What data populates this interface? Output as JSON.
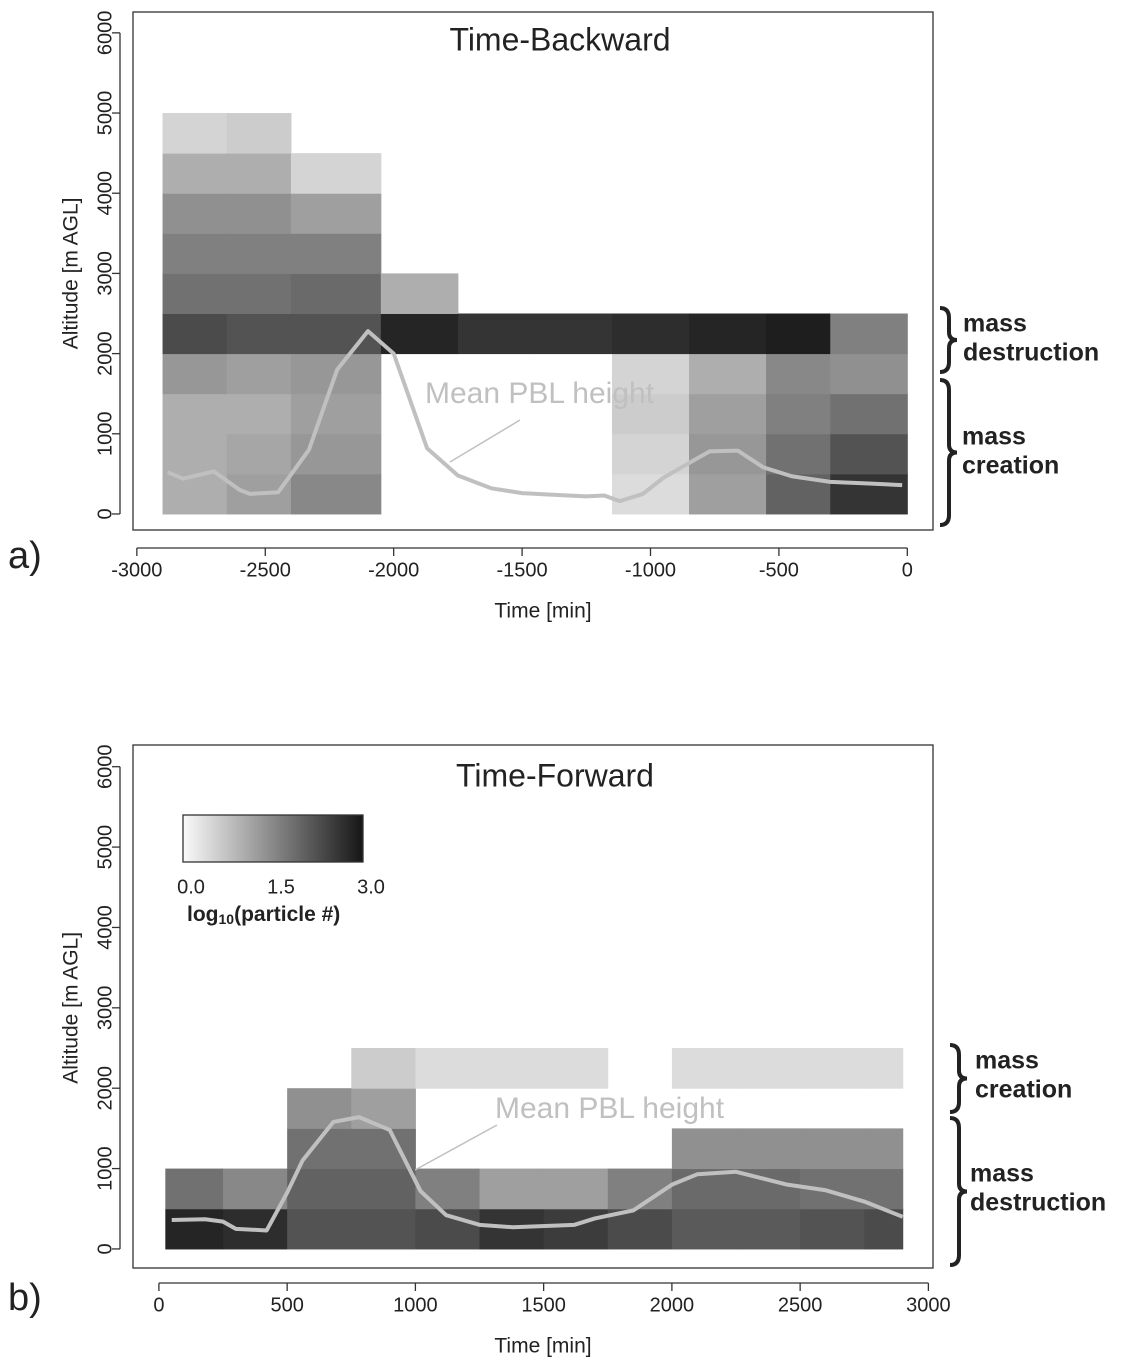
{
  "chart_data": [
    {
      "type": "heatmap",
      "title": "Time-Backward",
      "panel_label": "a)",
      "x_label": "Time [min]",
      "y_label": "Altitude [m AGL]",
      "xlim": [
        -3015,
        100
      ],
      "ylim": [
        -200,
        6260
      ],
      "xticks": [
        -3000,
        -2500,
        -2000,
        -1500,
        -1000,
        -500,
        0
      ],
      "yticks": [
        0,
        1000,
        2000,
        3000,
        4000,
        5000,
        6000
      ],
      "zlim": [
        0,
        3
      ],
      "x_edges": [
        -2900,
        -2650,
        -2400,
        -2050,
        -1750,
        -1450,
        -1150,
        -850,
        -550,
        -300,
        0
      ],
      "y_edges": [
        0,
        500,
        1000,
        1500,
        2000,
        2500,
        3000,
        3500,
        4000,
        4500,
        5000
      ],
      "z": [
        [
          1.0,
          1.0,
          1.0,
          1.3,
          2.3,
          1.8,
          1.6,
          1.4,
          1.0,
          0.5
        ],
        [
          1.2,
          1.1,
          1.0,
          1.2,
          2.2,
          1.8,
          1.6,
          1.4,
          1.0,
          0.6
        ],
        [
          1.5,
          1.3,
          1.2,
          1.3,
          2.2,
          1.9,
          1.6,
          1.2,
          0.5,
          null
        ],
        [
          null,
          null,
          null,
          null,
          2.8,
          1.0,
          null,
          null,
          null,
          null
        ],
        [
          null,
          null,
          null,
          null,
          2.6,
          null,
          null,
          null,
          null,
          null
        ],
        [
          null,
          null,
          null,
          null,
          2.6,
          null,
          null,
          null,
          null,
          null
        ],
        [
          0.4,
          0.5,
          0.6,
          0.5,
          2.7,
          null,
          null,
          null,
          null,
          null
        ],
        [
          1.2,
          1.3,
          1.2,
          1.0,
          2.8,
          null,
          null,
          null,
          null,
          null
        ],
        [
          2.0,
          1.8,
          1.6,
          1.5,
          2.9,
          null,
          null,
          null,
          null,
          null
        ],
        [
          2.6,
          2.2,
          1.8,
          1.4,
          1.6,
          null,
          null,
          null,
          null,
          null
        ]
      ],
      "series": [
        {
          "name": "Mean PBL height",
          "color": "#c0c0c0",
          "x": [
            -2880,
            -2820,
            -2700,
            -2600,
            -2560,
            -2450,
            -2330,
            -2220,
            -2100,
            -2000,
            -1870,
            -1750,
            -1620,
            -1500,
            -1380,
            -1250,
            -1180,
            -1120,
            -1030,
            -950,
            -880,
            -770,
            -660,
            -560,
            -450,
            -300,
            -150,
            -20
          ],
          "values": [
            520,
            440,
            530,
            300,
            250,
            270,
            800,
            1800,
            2280,
            2000,
            820,
            480,
            320,
            260,
            240,
            220,
            230,
            160,
            250,
            450,
            580,
            780,
            790,
            580,
            470,
            400,
            380,
            360
          ]
        }
      ],
      "brackets": [
        [
          "mass",
          "destruction"
        ],
        [
          "mass",
          "creation"
        ]
      ]
    },
    {
      "type": "heatmap",
      "title": "Time-Forward",
      "panel_label": "b)",
      "x_label": "Time [min]",
      "y_label": "Altitude [m AGL]",
      "xlim": [
        -101,
        3018
      ],
      "ylim": [
        -237,
        6270
      ],
      "xticks": [
        0,
        500,
        1000,
        1500,
        2000,
        2500,
        3000
      ],
      "yticks": [
        0,
        1000,
        2000,
        3000,
        4000,
        5000,
        6000
      ],
      "zlim": [
        0,
        3
      ],
      "zticks": [
        {
          "value": 0,
          "label": "0.0"
        },
        {
          "value": 1.5,
          "label": "1.5"
        },
        {
          "value": 3,
          "label": "3.0"
        }
      ],
      "colorbar_title": {
        "base": "log",
        "subscript": "10",
        "rest": "(particle #)"
      },
      "x_edges": [
        25,
        250,
        500,
        750,
        1000,
        1250,
        1500,
        1750,
        2000,
        2250,
        2500,
        2750,
        2900
      ],
      "y_edges": [
        0,
        500,
        1000,
        1500,
        2000,
        2500
      ],
      "z": [
        [
          2.8,
          1.8,
          null,
          null,
          null
        ],
        [
          2.7,
          1.5,
          null,
          null,
          null
        ],
        [
          2.2,
          2.0,
          1.8,
          1.4,
          null
        ],
        [
          2.2,
          2.0,
          1.8,
          1.2,
          0.6
        ],
        [
          2.3,
          1.6,
          null,
          null,
          0.4
        ],
        [
          2.6,
          1.2,
          null,
          null,
          0.4
        ],
        [
          2.5,
          1.2,
          null,
          null,
          0.4
        ],
        [
          2.3,
          1.6,
          null,
          null,
          null
        ],
        [
          2.1,
          1.9,
          1.4,
          null,
          0.4
        ],
        [
          2.1,
          1.9,
          1.4,
          null,
          0.4
        ],
        [
          2.2,
          1.8,
          1.4,
          null,
          0.4
        ],
        [
          2.3,
          1.8,
          1.4,
          null,
          0.4
        ]
      ],
      "series": [
        {
          "name": "Mean PBL height",
          "color": "#c0c0c0",
          "x": [
            50,
            180,
            250,
            300,
            420,
            500,
            560,
            680,
            780,
            900,
            1020,
            1120,
            1250,
            1380,
            1620,
            1700,
            1850,
            2000,
            2100,
            2250,
            2450,
            2600,
            2750,
            2900
          ],
          "values": [
            360,
            370,
            340,
            250,
            230,
            700,
            1100,
            1580,
            1640,
            1480,
            720,
            420,
            300,
            270,
            300,
            380,
            480,
            800,
            930,
            960,
            800,
            730,
            590,
            400
          ]
        }
      ],
      "brackets": [
        [
          "mass",
          "creation"
        ],
        [
          "mass",
          "destruction"
        ]
      ]
    }
  ]
}
